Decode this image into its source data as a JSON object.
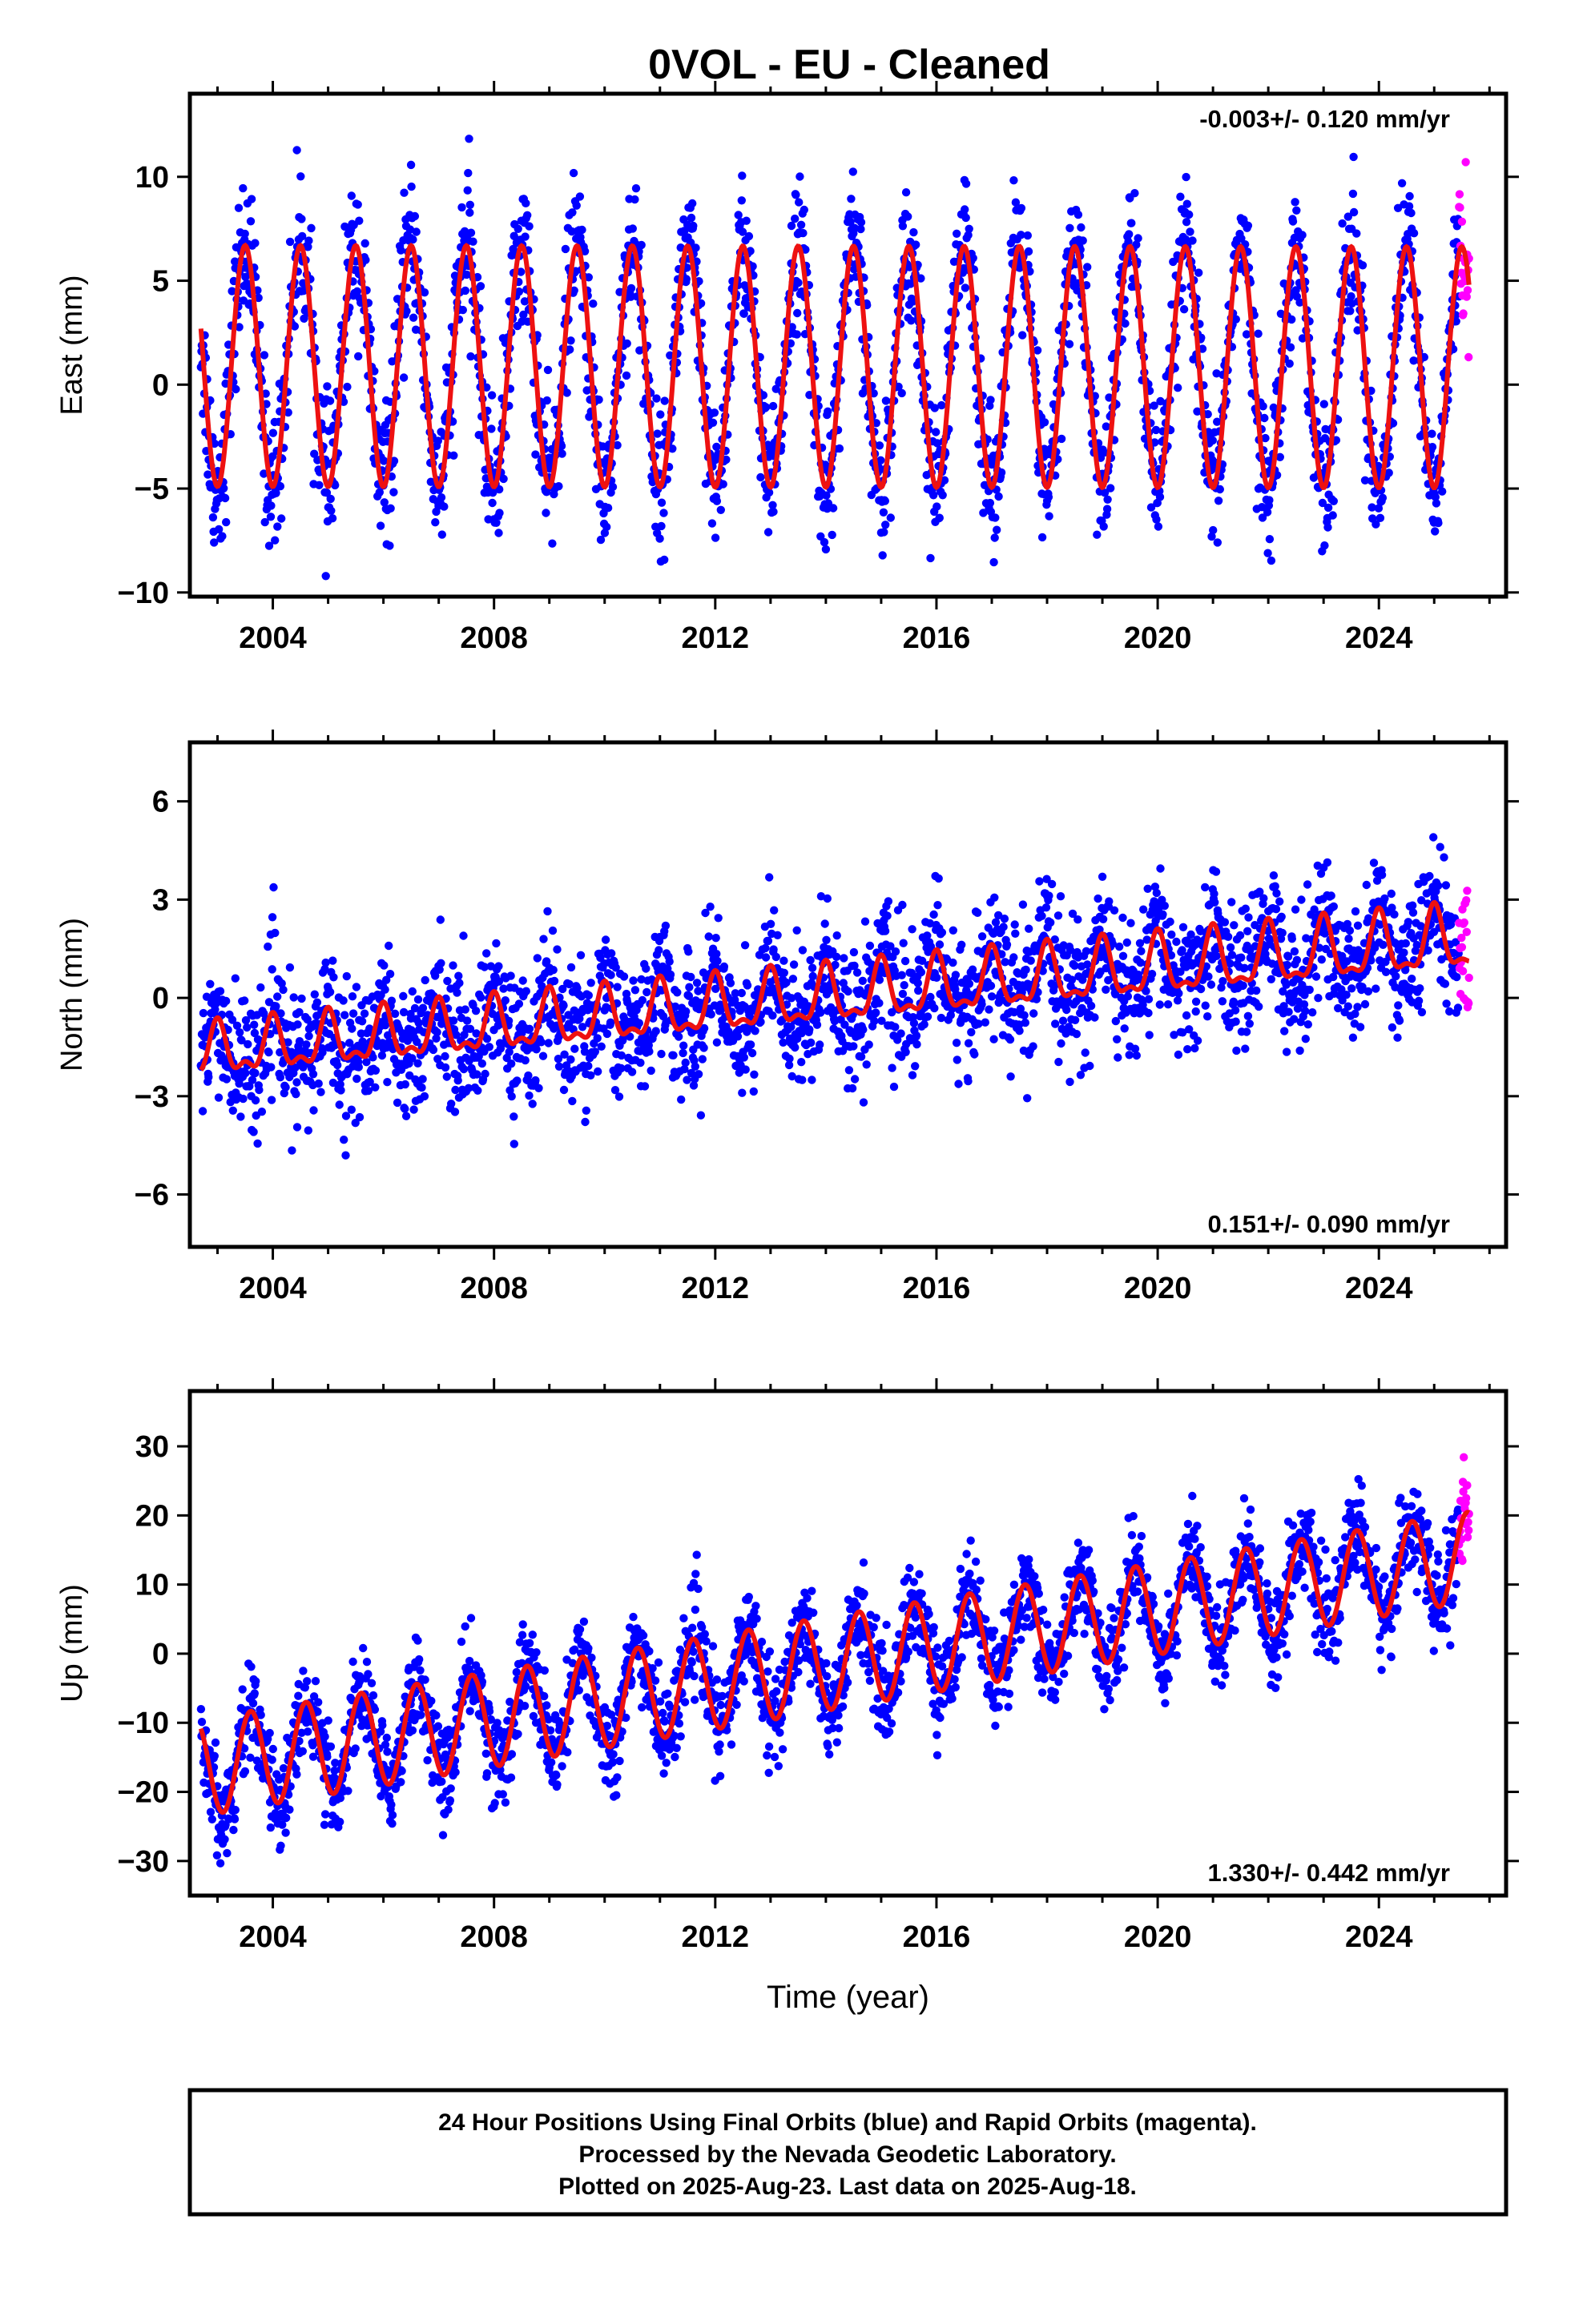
{
  "title": "0VOL  - EU - Cleaned",
  "colors": {
    "final": "#0000ff",
    "rapid": "#ff00ff",
    "model": "#ee1111",
    "axis": "#000000"
  },
  "caption": [
    "24 Hour Positions Using Final Orbits (blue) and Rapid Orbits (magenta).",
    "Processed by the Nevada Geodetic Laboratory.",
    "Plotted on 2025-Aug-23. Last data on 2025-Aug-18."
  ],
  "chart_data": [
    {
      "type": "scatter",
      "ylabel": "East (mm)",
      "xlabel": "",
      "xlim": [
        2002.5,
        2026.3
      ],
      "ylim": [
        -10.2,
        14.0
      ],
      "xticks": [
        2004,
        2008,
        2012,
        2016,
        2020,
        2024
      ],
      "yticks": [
        -10,
        -5,
        0,
        5,
        10
      ],
      "rate_label": "-0.003+/- 0.120 mm/yr",
      "rate_position": "top-right",
      "model": {
        "trend_mm_per_yr": -0.003,
        "offset": 0.9,
        "annual_amp_early": 5.8,
        "annual_amp_late": 5.8,
        "semiannual_amp": 0.0,
        "phase_peak_fraction": 0.5,
        "noise_sd": 1.6
      },
      "series": [
        {
          "name": "Final Orbits (blue)",
          "x_range": [
            2002.7,
            2025.45
          ]
        },
        {
          "name": "Rapid Orbits (magenta)",
          "x_range": [
            2025.45,
            2025.63
          ]
        }
      ]
    },
    {
      "type": "scatter",
      "ylabel": "North (mm)",
      "xlabel": "",
      "xlim": [
        2002.5,
        2026.3
      ],
      "ylim": [
        -7.6,
        7.8
      ],
      "xticks": [
        2004,
        2008,
        2012,
        2016,
        2020,
        2024
      ],
      "yticks": [
        -6,
        -3,
        0,
        3,
        6
      ],
      "rate_label": "0.151+/- 0.090 mm/yr",
      "rate_position": "bottom-right",
      "model": {
        "trend_mm_per_yr": 0.151,
        "offset": -1.7,
        "annual_amp_early": 0.7,
        "annual_amp_late": 0.9,
        "semiannual_amp": 0.35,
        "phase_peak_fraction": 0.0,
        "noise_sd": 1.0
      },
      "series": [
        {
          "name": "Final Orbits (blue)",
          "x_range": [
            2002.7,
            2025.45
          ]
        },
        {
          "name": "Rapid Orbits (magenta)",
          "x_range": [
            2025.45,
            2025.63
          ]
        }
      ]
    },
    {
      "type": "scatter",
      "ylabel": "Up (mm)",
      "xlabel": "Time (year)",
      "xlim": [
        2002.5,
        2026.3
      ],
      "ylim": [
        -35,
        38
      ],
      "xticks": [
        2004,
        2008,
        2012,
        2016,
        2020,
        2024
      ],
      "yticks": [
        -30,
        -20,
        -10,
        0,
        10,
        20,
        30
      ],
      "rate_label": "1.330+/- 0.442 mm/yr",
      "rate_position": "bottom-right",
      "model": {
        "trend_mm_per_yr": 1.33,
        "offset": -16.5,
        "annual_amp_early": 7.0,
        "annual_amp_late": 6.5,
        "semiannual_amp": 0.0,
        "phase_peak_fraction": 0.6,
        "noise_sd": 3.3
      },
      "series": [
        {
          "name": "Final Orbits (blue)",
          "x_range": [
            2002.7,
            2025.45
          ]
        },
        {
          "name": "Rapid Orbits (magenta)",
          "x_range": [
            2025.45,
            2025.63
          ]
        }
      ]
    }
  ]
}
